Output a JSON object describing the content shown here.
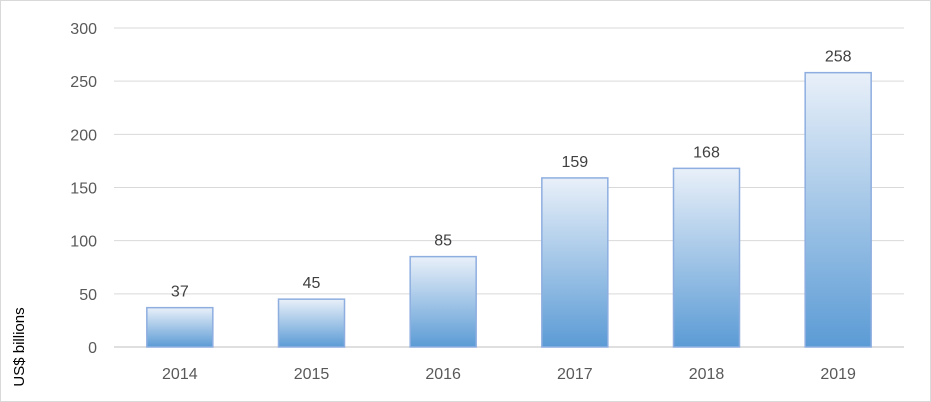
{
  "chart_data": {
    "type": "bar",
    "categories": [
      "2014",
      "2015",
      "2016",
      "2017",
      "2018",
      "2019"
    ],
    "values": [
      37,
      45,
      85,
      159,
      168,
      258
    ],
    "title": "",
    "xlabel": "",
    "ylabel": "US$ billions",
    "ylim": [
      0,
      300
    ],
    "yticks": [
      0,
      50,
      100,
      150,
      200,
      250,
      300
    ],
    "grid": true,
    "legend": "none",
    "colors": {
      "bar_top": "#e9f0f9",
      "bar_bottom": "#5b9bd5",
      "bar_border": "#8eaee0",
      "grid": "#d9d9d9",
      "axis": "#bfbfbf"
    }
  }
}
